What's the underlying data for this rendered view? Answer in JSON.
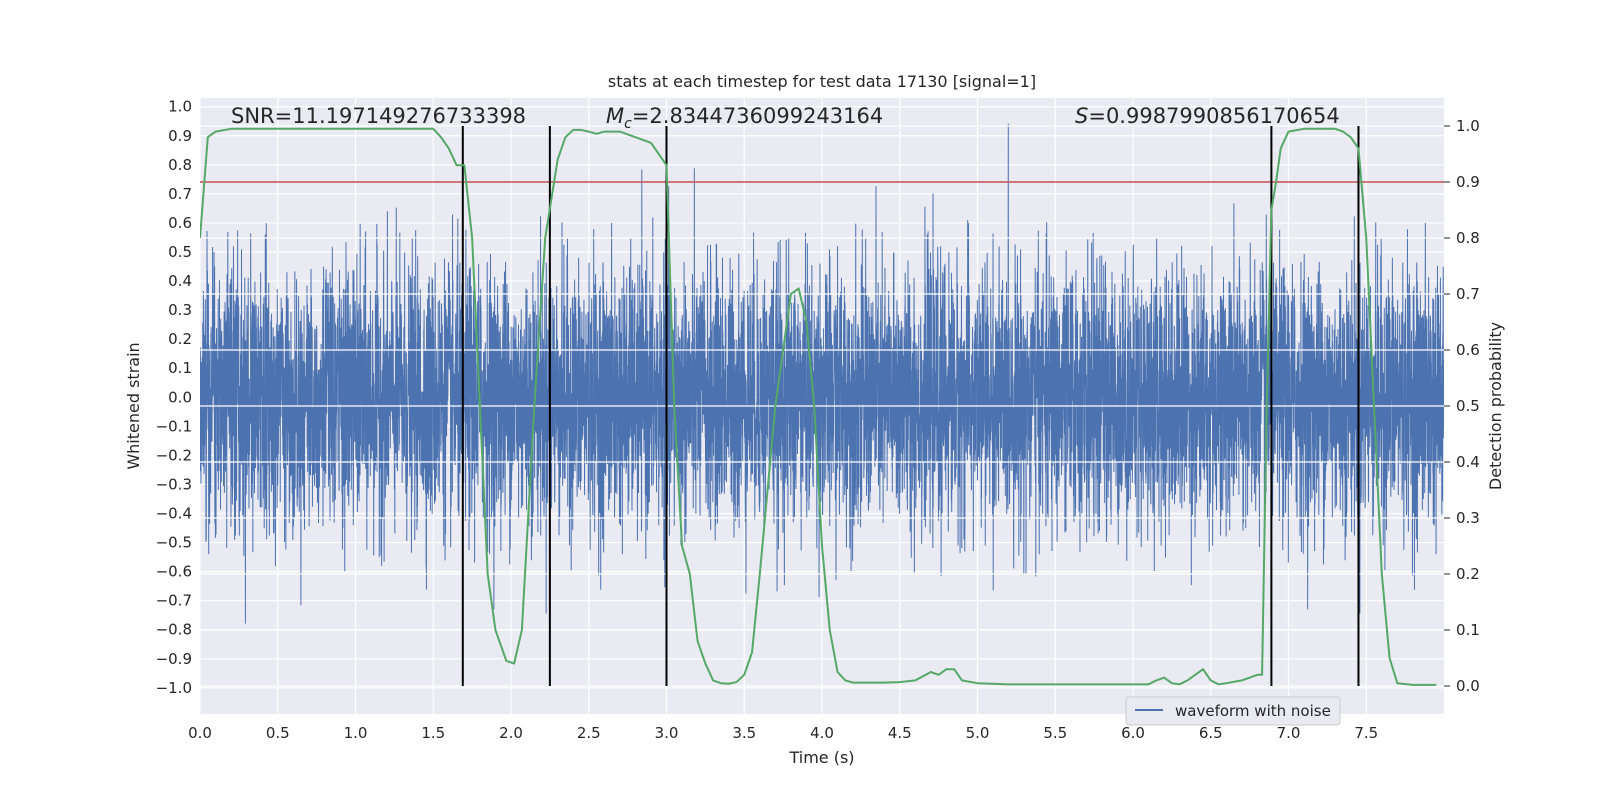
{
  "chart_data": {
    "type": "line",
    "title": "stats at each timestep for test data 17130 [signal=1]",
    "xlabel": "Time (s)",
    "ylabel": "Whitened strain",
    "y2label": "Detection probability",
    "xlim": [
      0.0,
      8.0
    ],
    "ylim": [
      -1.09,
      1.03
    ],
    "y2lim": [
      -0.05,
      1.05
    ],
    "xticks": [
      "0.0",
      "0.5",
      "1.0",
      "1.5",
      "2.0",
      "2.5",
      "3.0",
      "3.5",
      "4.0",
      "4.5",
      "5.0",
      "5.5",
      "6.0",
      "6.5",
      "7.0",
      "7.5"
    ],
    "yticks": [
      "1.0",
      "0.9",
      "0.8",
      "0.7",
      "0.6",
      "0.5",
      "0.4",
      "0.3",
      "0.2",
      "0.1",
      "0.0",
      "-0.1",
      "-0.2",
      "-0.3",
      "-0.4",
      "-0.5",
      "-0.6",
      "-0.7",
      "-0.8",
      "-0.9",
      "-1.0"
    ],
    "y2ticks": [
      "1.0",
      "0.9",
      "0.8",
      "0.7",
      "0.6",
      "0.5",
      "0.4",
      "0.3",
      "0.2",
      "0.1",
      "0.0"
    ],
    "annotations": {
      "snr": "SNR=11.197149276733398",
      "mc_symbol": "M",
      "mc_sub": "c",
      "mc_value": "=2.8344736099243164",
      "s_symbol": "S",
      "s_value": "=0.9987990856170654"
    },
    "threshold": {
      "value": 0.9,
      "color": "#c44e52"
    },
    "vertical_lines": [
      1.69,
      2.25,
      3.0,
      6.89,
      7.45
    ],
    "detection_probability": {
      "name": "Detection probability",
      "color": "#55a868",
      "x": [
        0.0,
        0.05,
        0.1,
        0.2,
        0.3,
        0.4,
        0.5,
        0.6,
        0.7,
        0.8,
        0.9,
        1.0,
        1.1,
        1.2,
        1.3,
        1.4,
        1.5,
        1.55,
        1.6,
        1.65,
        1.7,
        1.75,
        1.8,
        1.85,
        1.9,
        1.97,
        2.02,
        2.07,
        2.15,
        2.22,
        2.3,
        2.35,
        2.4,
        2.45,
        2.5,
        2.55,
        2.6,
        2.7,
        2.8,
        2.9,
        2.95,
        3.0,
        3.05,
        3.1,
        3.15,
        3.2,
        3.25,
        3.3,
        3.35,
        3.4,
        3.45,
        3.5,
        3.55,
        3.6,
        3.65,
        3.7,
        3.75,
        3.8,
        3.85,
        3.9,
        3.95,
        4.0,
        4.05,
        4.1,
        4.15,
        4.2,
        4.3,
        4.4,
        4.5,
        4.6,
        4.7,
        4.75,
        4.8,
        4.85,
        4.9,
        5.0,
        5.2,
        5.4,
        5.6,
        5.8,
        6.0,
        6.1,
        6.15,
        6.2,
        6.25,
        6.3,
        6.35,
        6.4,
        6.45,
        6.5,
        6.55,
        6.6,
        6.7,
        6.8,
        6.83,
        6.86,
        6.89,
        6.92,
        6.95,
        7.0,
        7.1,
        7.2,
        7.3,
        7.35,
        7.4,
        7.45,
        7.5,
        7.55,
        7.6,
        7.65,
        7.7,
        7.8,
        7.95
      ],
      "y": [
        0.8,
        0.98,
        0.99,
        0.995,
        0.995,
        0.995,
        0.995,
        0.995,
        0.995,
        0.995,
        0.995,
        0.995,
        0.995,
        0.995,
        0.995,
        0.995,
        0.995,
        0.98,
        0.96,
        0.93,
        0.93,
        0.8,
        0.5,
        0.2,
        0.1,
        0.045,
        0.04,
        0.1,
        0.5,
        0.8,
        0.94,
        0.98,
        0.993,
        0.993,
        0.99,
        0.986,
        0.99,
        0.99,
        0.98,
        0.97,
        0.95,
        0.93,
        0.5,
        0.25,
        0.2,
        0.08,
        0.04,
        0.01,
        0.005,
        0.004,
        0.007,
        0.02,
        0.06,
        0.2,
        0.35,
        0.5,
        0.6,
        0.7,
        0.71,
        0.65,
        0.5,
        0.25,
        0.1,
        0.025,
        0.01,
        0.006,
        0.006,
        0.006,
        0.007,
        0.01,
        0.025,
        0.02,
        0.03,
        0.03,
        0.01,
        0.005,
        0.003,
        0.003,
        0.003,
        0.003,
        0.003,
        0.003,
        0.01,
        0.015,
        0.005,
        0.003,
        0.01,
        0.02,
        0.03,
        0.01,
        0.003,
        0.005,
        0.01,
        0.02,
        0.02,
        0.5,
        0.85,
        0.9,
        0.96,
        0.99,
        0.995,
        0.995,
        0.995,
        0.99,
        0.98,
        0.96,
        0.8,
        0.5,
        0.2,
        0.05,
        0.005,
        0.002,
        0.002
      ]
    },
    "series": [
      {
        "name": "waveform with noise",
        "color": "#4c72b0"
      }
    ],
    "legend_position": "bottom-right"
  }
}
